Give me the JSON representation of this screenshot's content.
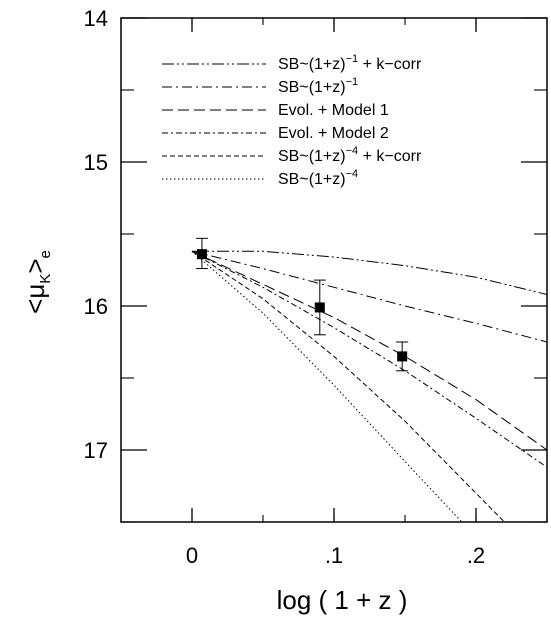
{
  "chart_data": {
    "type": "line",
    "xlabel": "log ( 1 + z )",
    "ylabel_main": "<μ",
    "ylabel_sub": "K",
    "ylabel_close": ">",
    "ylabel_tail": "e",
    "xlim": [
      -0.05,
      0.25
    ],
    "ylim": [
      17.5,
      14.0
    ],
    "y_inverted": true,
    "x_ticks": [
      {
        "value": 0.0,
        "label": "0"
      },
      {
        "value": 0.1,
        "label": ".1"
      },
      {
        "value": 0.2,
        "label": ".2"
      }
    ],
    "y_ticks": [
      {
        "value": 14,
        "label": "14"
      },
      {
        "value": 15,
        "label": "15"
      },
      {
        "value": 16,
        "label": "16"
      },
      {
        "value": 17,
        "label": "17"
      }
    ],
    "legend_placement": "top-right",
    "series": [
      {
        "name": "SB~(1+z)^-1 + k-corr",
        "label_parts": [
          "SB~(1+z)",
          "−1",
          "  +  k−corr"
        ],
        "dash": "12,3,2,3,2,3",
        "x": [
          0.0,
          0.05,
          0.1,
          0.15,
          0.2,
          0.25
        ],
        "y": [
          15.62,
          15.62,
          15.66,
          15.72,
          15.8,
          15.92
        ]
      },
      {
        "name": "SB~(1+z)^-1",
        "label_parts": [
          "SB~(1+z)",
          "−1",
          ""
        ],
        "dash": "10,4,2,4",
        "x": [
          0.0,
          0.05,
          0.1,
          0.15,
          0.2,
          0.25
        ],
        "y": [
          15.62,
          15.74,
          15.87,
          16.0,
          16.12,
          16.25
        ]
      },
      {
        "name": "Evol. + Model 1",
        "label_parts": [
          "Evol. + Model 1",
          "",
          ""
        ],
        "dash": "11,5",
        "x": [
          0.0,
          0.05,
          0.1,
          0.15,
          0.2,
          0.25
        ],
        "y": [
          15.62,
          15.85,
          16.08,
          16.35,
          16.65,
          17.0
        ]
      },
      {
        "name": "Evol. + Model 2",
        "label_parts": [
          "Evol. + Model 2",
          "",
          ""
        ],
        "dash": "6,3,2,3",
        "x": [
          0.0,
          0.05,
          0.1,
          0.15,
          0.2,
          0.25
        ],
        "y": [
          15.62,
          15.87,
          16.15,
          16.45,
          16.78,
          17.12
        ]
      },
      {
        "name": "SB~(1+z)^-4 + k-corr",
        "label_parts": [
          "SB~(1+z)",
          "−4",
          "  +  k−corr"
        ],
        "dash": "5,3",
        "x": [
          0.0,
          0.05,
          0.1,
          0.15,
          0.2,
          0.22
        ],
        "y": [
          15.62,
          15.95,
          16.35,
          16.8,
          17.3,
          17.5
        ]
      },
      {
        "name": "SB~(1+z)^-4",
        "label_parts": [
          "SB~(1+z)",
          "−4",
          ""
        ],
        "dash": "1.5,2.5",
        "x": [
          0.0,
          0.05,
          0.1,
          0.15,
          0.19
        ],
        "y": [
          15.62,
          16.05,
          16.55,
          17.08,
          17.5
        ]
      }
    ],
    "points": [
      {
        "x": 0.007,
        "y": 15.64,
        "err_low": 15.53,
        "err_high": 15.74
      },
      {
        "x": 0.09,
        "y": 16.01,
        "err_low": 15.82,
        "err_high": 16.2
      },
      {
        "x": 0.148,
        "y": 16.35,
        "err_low": 16.25,
        "err_high": 16.45
      }
    ]
  }
}
